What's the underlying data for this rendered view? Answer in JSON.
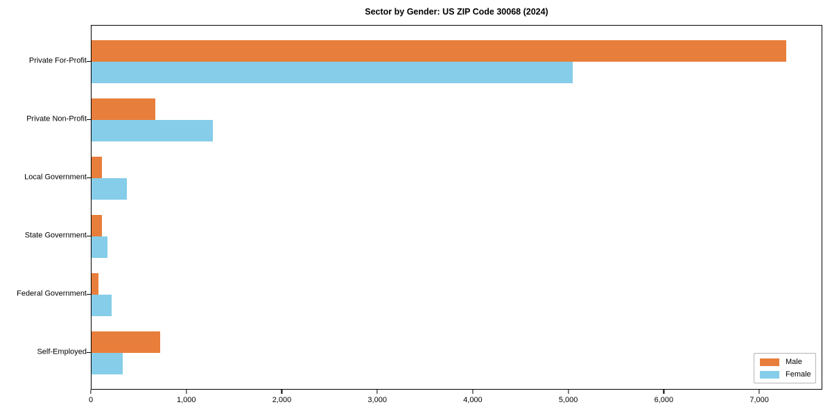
{
  "chart_data": {
    "type": "bar",
    "orientation": "horizontal",
    "title": "Sector by Gender: US ZIP Code 30068 (2024)",
    "categories": [
      "Private For-Profit",
      "Private Non-Profit",
      "Local Government",
      "State Government",
      "Federal Government",
      "Self-Employed"
    ],
    "series": [
      {
        "name": "Male",
        "color": "#e87e3b",
        "values": [
          7290,
          670,
          110,
          110,
          75,
          720
        ]
      },
      {
        "name": "Female",
        "color": "#85cde9",
        "values": [
          5050,
          1275,
          370,
          170,
          210,
          330
        ]
      }
    ],
    "xlabel": "",
    "ylabel": "",
    "xlim": [
      0,
      7660
    ],
    "xticks": {
      "values": [
        0,
        1000,
        2000,
        3000,
        4000,
        5000,
        6000,
        7000
      ],
      "labels": [
        "0",
        "1,000",
        "2,000",
        "3,000",
        "4,000",
        "5,000",
        "6,000",
        "7,000"
      ]
    },
    "grid": false,
    "legend": {
      "position": "lower right"
    }
  }
}
